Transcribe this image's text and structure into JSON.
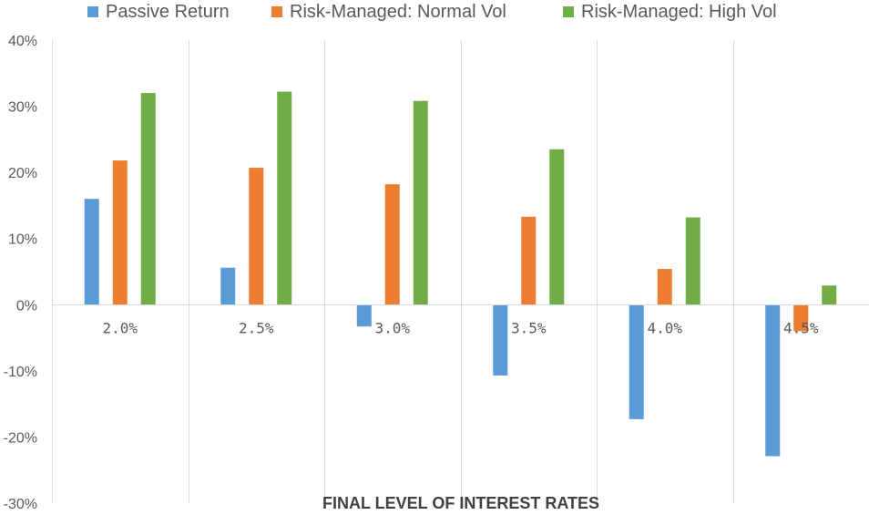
{
  "chart_data": {
    "type": "bar",
    "xlabel": "FINAL LEVEL OF INTEREST RATES",
    "ylabel": "",
    "categories": [
      "2.0%",
      "2.5%",
      "3.0%",
      "3.5%",
      "4.0%",
      "4.5%"
    ],
    "ylim": [
      -30,
      40
    ],
    "yticks": [
      40,
      30,
      20,
      10,
      0,
      -10,
      -20,
      -30
    ],
    "ytick_labels": [
      "40%",
      "30%",
      "20%",
      "10%",
      "0%",
      "-10%",
      "-20%",
      "-30%"
    ],
    "grid": "vertical category separators",
    "legend": "top",
    "series": [
      {
        "name": "Passive Return",
        "color": "#5B9BD5",
        "values": [
          16.0,
          5.6,
          -3.3,
          -10.7,
          -17.3,
          -22.9
        ]
      },
      {
        "name": "Risk-Managed: Normal Vol",
        "color": "#ED7D31",
        "values": [
          21.8,
          20.7,
          18.2,
          13.3,
          5.4,
          -4.0
        ]
      },
      {
        "name": "Risk-Managed: High Vol",
        "color": "#70AD47",
        "values": [
          32.0,
          32.2,
          30.8,
          23.5,
          13.2,
          2.9
        ]
      }
    ]
  }
}
